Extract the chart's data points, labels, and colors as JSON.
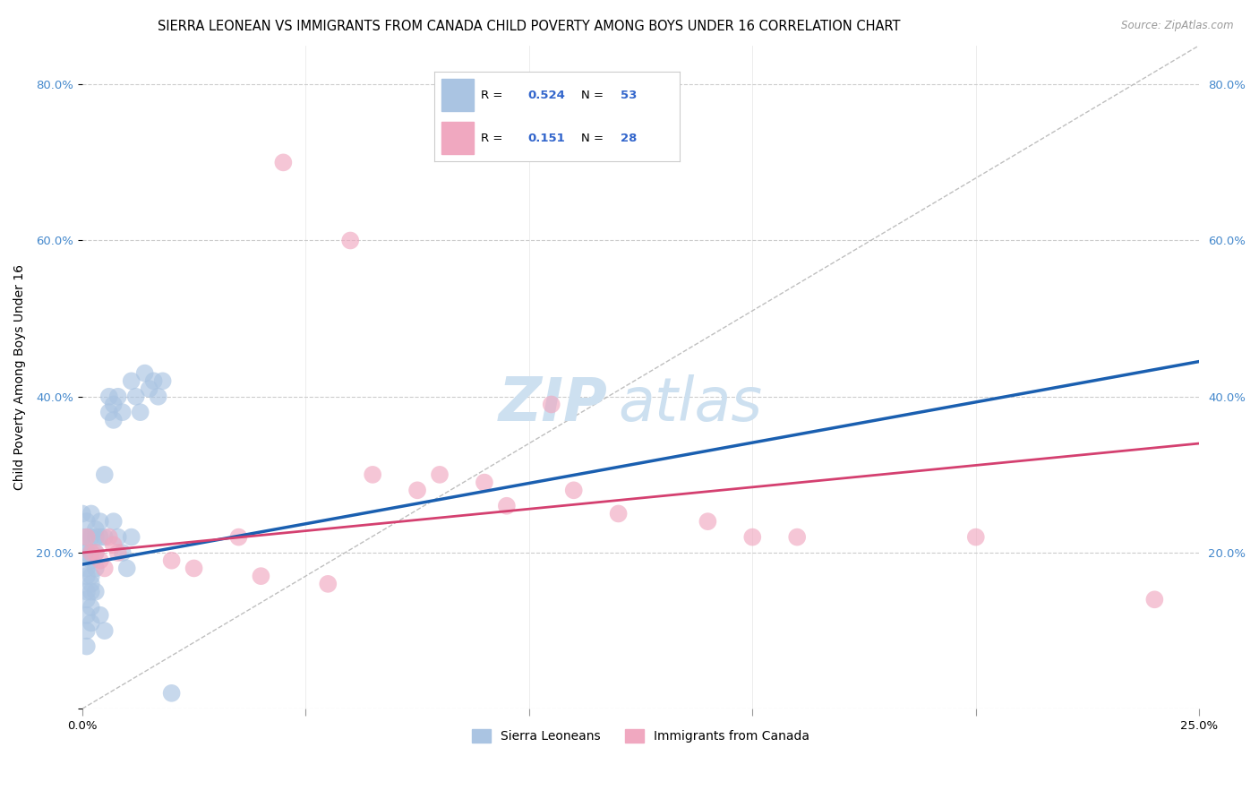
{
  "title": "SIERRA LEONEAN VS IMMIGRANTS FROM CANADA CHILD POVERTY AMONG BOYS UNDER 16 CORRELATION CHART",
  "source": "Source: ZipAtlas.com",
  "ylabel": "Child Poverty Among Boys Under 16",
  "watermark_zip": "ZIP",
  "watermark_atlas": "atlas",
  "series1_label": "Sierra Leoneans",
  "series2_label": "Immigrants from Canada",
  "color1": "#aac4e2",
  "color2": "#f0a8c0",
  "trendline1_color": "#1a5fb0",
  "trendline2_color": "#d44070",
  "refline_color": "#b8b8b8",
  "xlim": [
    0.0,
    0.25
  ],
  "ylim": [
    0.0,
    0.85
  ],
  "xticks": [
    0.0,
    0.05,
    0.1,
    0.15,
    0.2,
    0.25
  ],
  "xticklabels": [
    "0.0%",
    "",
    "",
    "",
    "",
    "25.0%"
  ],
  "yticks": [
    0.0,
    0.2,
    0.4,
    0.6,
    0.8
  ],
  "yticklabels": [
    "",
    "20.0%",
    "40.0%",
    "60.0%",
    "80.0%"
  ],
  "legend_r1": "0.524",
  "legend_n1": "53",
  "legend_r2": "0.151",
  "legend_n2": "28",
  "sierra_x": [
    0.0,
    0.0,
    0.0,
    0.001,
    0.001,
    0.001,
    0.001,
    0.001,
    0.001,
    0.001,
    0.001,
    0.001,
    0.001,
    0.002,
    0.002,
    0.002,
    0.002,
    0.002,
    0.002,
    0.002,
    0.002,
    0.002,
    0.003,
    0.003,
    0.003,
    0.003,
    0.003,
    0.004,
    0.004,
    0.004,
    0.005,
    0.005,
    0.005,
    0.006,
    0.006,
    0.007,
    0.007,
    0.007,
    0.008,
    0.008,
    0.009,
    0.009,
    0.01,
    0.011,
    0.011,
    0.012,
    0.013,
    0.014,
    0.015,
    0.016,
    0.017,
    0.018,
    0.02
  ],
  "sierra_y": [
    0.25,
    0.22,
    0.2,
    0.24,
    0.22,
    0.2,
    0.18,
    0.17,
    0.15,
    0.14,
    0.12,
    0.1,
    0.08,
    0.25,
    0.22,
    0.2,
    0.19,
    0.17,
    0.16,
    0.15,
    0.13,
    0.11,
    0.23,
    0.22,
    0.2,
    0.18,
    0.15,
    0.24,
    0.22,
    0.12,
    0.3,
    0.22,
    0.1,
    0.4,
    0.38,
    0.39,
    0.37,
    0.24,
    0.4,
    0.22,
    0.38,
    0.2,
    0.18,
    0.42,
    0.22,
    0.4,
    0.38,
    0.43,
    0.41,
    0.42,
    0.4,
    0.42,
    0.02
  ],
  "canada_x": [
    0.001,
    0.002,
    0.003,
    0.004,
    0.005,
    0.006,
    0.007,
    0.008,
    0.02,
    0.025,
    0.035,
    0.04,
    0.045,
    0.055,
    0.06,
    0.065,
    0.075,
    0.08,
    0.09,
    0.095,
    0.105,
    0.11,
    0.12,
    0.14,
    0.15,
    0.16,
    0.2,
    0.24
  ],
  "canada_y": [
    0.22,
    0.2,
    0.2,
    0.19,
    0.18,
    0.22,
    0.21,
    0.2,
    0.19,
    0.18,
    0.22,
    0.17,
    0.7,
    0.16,
    0.6,
    0.3,
    0.28,
    0.3,
    0.29,
    0.26,
    0.39,
    0.28,
    0.25,
    0.24,
    0.22,
    0.22,
    0.22,
    0.14
  ],
  "trendline1_x": [
    0.0,
    0.25
  ],
  "trendline1_y": [
    0.185,
    0.445
  ],
  "trendline2_x": [
    0.0,
    0.25
  ],
  "trendline2_y": [
    0.2,
    0.34
  ],
  "refline_x": [
    0.0,
    0.25
  ],
  "refline_y": [
    0.0,
    0.85
  ],
  "background_color": "#ffffff",
  "grid_color": "#cccccc",
  "title_fontsize": 10.5,
  "axis_label_fontsize": 10,
  "tick_fontsize": 9.5,
  "watermark_fontsize_zip": 48,
  "watermark_fontsize_atlas": 48
}
